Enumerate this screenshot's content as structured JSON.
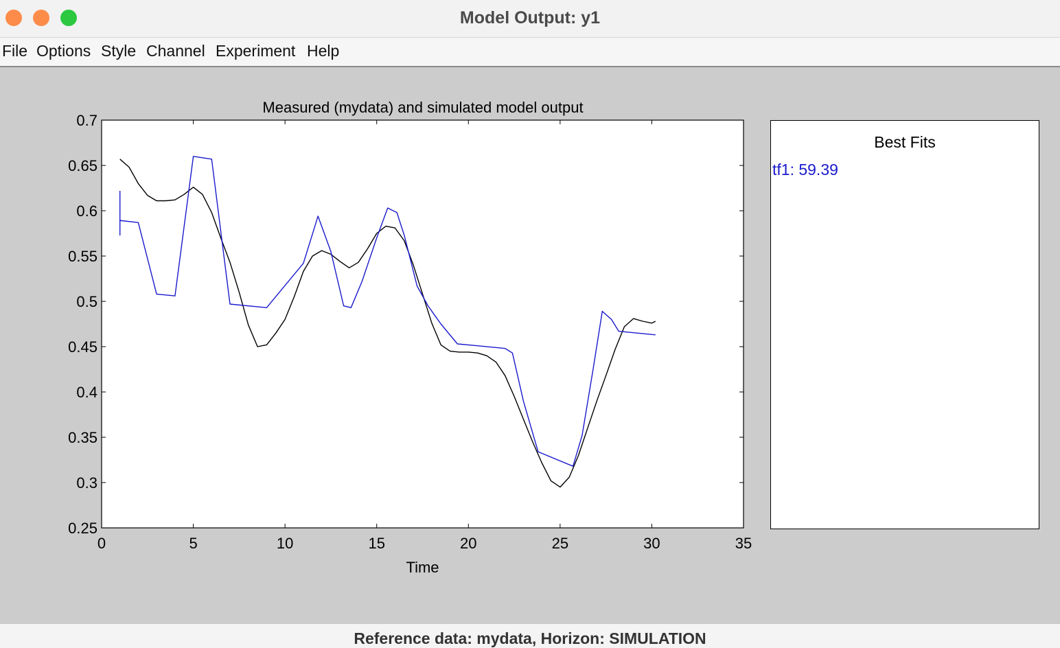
{
  "window": {
    "title": "Model Output: y1"
  },
  "menu": [
    "File",
    "Options",
    "Style",
    "Channel",
    "Experiment",
    "Help"
  ],
  "legend": {
    "title": "Best Fits",
    "entries": [
      {
        "label": "tf1: 59.39",
        "color": "#1a1acc"
      }
    ]
  },
  "status": "Reference data:  mydata, Horizon: SIMULATION",
  "chart_data": {
    "type": "line",
    "title": "Measured (mydata) and simulated model output",
    "xlabel": "Time",
    "ylabel": "",
    "xlim": [
      0,
      35
    ],
    "ylim": [
      0.25,
      0.7
    ],
    "xticks": [
      0,
      5,
      10,
      15,
      20,
      25,
      30,
      35
    ],
    "yticks": [
      0.25,
      0.3,
      0.35,
      0.4,
      0.45,
      0.5,
      0.55,
      0.6,
      0.65,
      0.7
    ],
    "grid": false,
    "series": [
      {
        "name": "",
        "color": "#000000",
        "x": [
          1.0,
          1.5,
          2.0,
          2.5,
          3.0,
          3.5,
          4.0,
          4.5,
          5.0,
          5.5,
          6.0,
          6.5,
          7.0,
          7.5,
          8.0,
          8.5,
          9.0,
          9.5,
          10.0,
          10.5,
          11.0,
          11.5,
          12.0,
          12.5,
          13.0,
          13.5,
          14.0,
          14.5,
          15.0,
          15.5,
          16.0,
          16.5,
          17.0,
          17.5,
          18.0,
          18.5,
          19.0,
          19.5,
          20.0,
          20.5,
          21.0,
          21.5,
          22.0,
          22.5,
          23.0,
          23.5,
          24.0,
          24.5,
          25.0,
          25.5,
          26.0,
          26.5,
          27.0,
          27.5,
          28.0,
          28.5,
          29.0,
          29.5,
          30.0,
          30.2
        ],
        "y": [
          0.657,
          0.648,
          0.63,
          0.617,
          0.611,
          0.611,
          0.612,
          0.618,
          0.626,
          0.618,
          0.598,
          0.57,
          0.543,
          0.51,
          0.474,
          0.45,
          0.452,
          0.465,
          0.48,
          0.505,
          0.533,
          0.55,
          0.556,
          0.552,
          0.544,
          0.537,
          0.543,
          0.558,
          0.575,
          0.583,
          0.581,
          0.567,
          0.54,
          0.508,
          0.476,
          0.452,
          0.445,
          0.444,
          0.444,
          0.443,
          0.44,
          0.433,
          0.418,
          0.395,
          0.37,
          0.345,
          0.322,
          0.302,
          0.295,
          0.306,
          0.33,
          0.36,
          0.39,
          0.418,
          0.447,
          0.472,
          0.481,
          0.478,
          0.476,
          0.478
        ]
      },
      {
        "name": "",
        "color": "#1a1acc",
        "x": [
          1.0,
          1.0,
          1.0,
          1.05,
          1.1,
          2.0,
          3.0,
          4.0,
          5.0,
          6.0,
          7.0,
          9.0,
          11.0,
          11.8,
          12.5,
          13.2,
          13.6,
          14.2,
          15.0,
          15.6,
          16.1,
          16.5,
          17.2,
          17.8,
          18.5,
          19.4,
          20.5,
          21.5,
          22.0,
          22.4,
          23.0,
          23.8,
          25.7,
          26.2,
          26.8,
          27.3,
          27.8,
          28.2,
          30.2
        ],
        "y": [
          0.622,
          0.573,
          0.59,
          0.589,
          0.589,
          0.587,
          0.508,
          0.506,
          0.66,
          0.657,
          0.497,
          0.493,
          0.542,
          0.594,
          0.555,
          0.495,
          0.493,
          0.522,
          0.57,
          0.603,
          0.598,
          0.573,
          0.517,
          0.495,
          0.475,
          0.453,
          0.451,
          0.449,
          0.448,
          0.443,
          0.39,
          0.334,
          0.318,
          0.352,
          0.425,
          0.489,
          0.48,
          0.467,
          0.463
        ]
      }
    ]
  }
}
